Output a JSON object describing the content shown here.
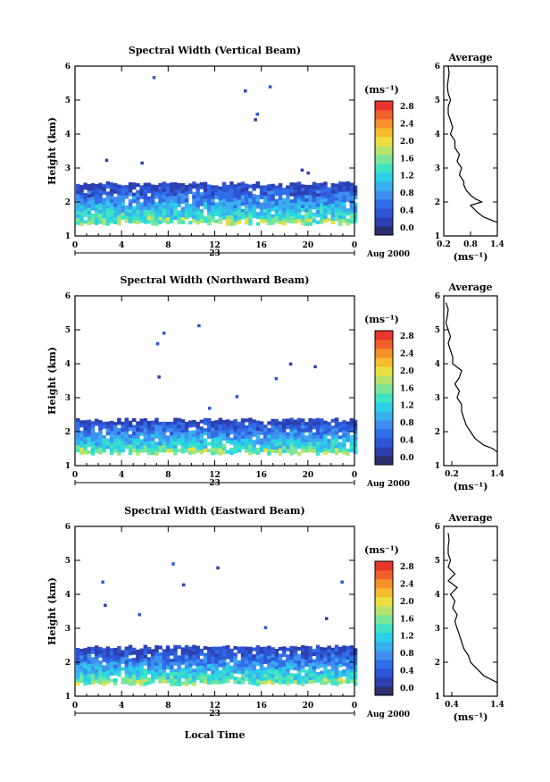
{
  "figure": {
    "date_label": "Aug 2000",
    "xaxis_title": "Local Time",
    "day_label": "23",
    "height_label": "Height (km)",
    "cbar_unit": "(ms⁻¹)",
    "avg_title": "Average",
    "avg_unit": "(ms⁻¹)"
  },
  "colors": {
    "scale": [
      "#2b2f6e",
      "#2c3fb0",
      "#2d55d6",
      "#2f6ee8",
      "#3f8ff0",
      "#38b0ee",
      "#2ad1e6",
      "#3fe3c4",
      "#7ae69a",
      "#b7e36a",
      "#ecdf3f",
      "#f7bb2e",
      "#f7912a",
      "#f0602a",
      "#e8352c"
    ]
  },
  "chart_data": [
    {
      "type": "heatmap",
      "title": "Spectral Width (Vertical Beam)",
      "xlabel": "Local Time",
      "ylabel": "Height (km)",
      "xlim": [
        0,
        24
      ],
      "ylim": [
        1,
        6
      ],
      "xticks": [
        "0",
        "4",
        "8",
        "12",
        "16",
        "20",
        "0"
      ],
      "yticks": [
        "1",
        "2",
        "3",
        "4",
        "5",
        "6"
      ],
      "colorbar": {
        "label": "(ms⁻¹)",
        "range": [
          0,
          2.8
        ],
        "ticks": [
          "0.0",
          "0.4",
          "0.8",
          "1.2",
          "1.6",
          "2.0",
          "2.4",
          "2.8"
        ]
      },
      "layer_top_km": 2.55,
      "data_bottom_km": 1.4,
      "profile": {
        "title": "Average",
        "xlabel": "(ms⁻¹)",
        "xlim": [
          0.2,
          1.4
        ],
        "xticks": [
          "0.2",
          "0.8",
          "1.4"
        ],
        "height": [
          1.4,
          1.45,
          1.55,
          1.7,
          1.9,
          2.0,
          2.1,
          2.2,
          2.35,
          2.5,
          2.6,
          2.8,
          3.0,
          3.2,
          3.4,
          3.6,
          3.8,
          4.0,
          4.2,
          4.4,
          4.6,
          4.8,
          5.0,
          5.2,
          5.4,
          5.6,
          5.8,
          6.0
        ],
        "width": [
          1.4,
          1.3,
          1.1,
          0.95,
          0.8,
          1.05,
          0.9,
          0.8,
          0.7,
          0.65,
          0.65,
          0.55,
          0.6,
          0.5,
          0.55,
          0.45,
          0.45,
          0.35,
          0.4,
          0.35,
          0.3,
          0.3,
          0.35,
          0.3,
          0.28,
          0.3,
          0.32,
          0.3
        ]
      }
    },
    {
      "type": "heatmap",
      "title": "Spectral Width (Northward Beam)",
      "xlabel": "Local Time",
      "ylabel": "Height (km)",
      "xlim": [
        0,
        24
      ],
      "ylim": [
        1,
        6
      ],
      "xticks": [
        "0",
        "4",
        "8",
        "12",
        "16",
        "20",
        "0"
      ],
      "yticks": [
        "1",
        "2",
        "3",
        "4",
        "5",
        "6"
      ],
      "colorbar": {
        "label": "(ms⁻¹)",
        "range": [
          0,
          2.8
        ],
        "ticks": [
          "0.0",
          "0.4",
          "0.8",
          "1.2",
          "1.6",
          "2.0",
          "2.4",
          "2.8"
        ]
      },
      "layer_top_km": 2.35,
      "data_bottom_km": 1.4,
      "profile": {
        "title": "Average",
        "xlabel": "(ms⁻¹)",
        "xlim": [
          0.2,
          1.4
        ],
        "xticks": [
          "0.2",
          "1.4"
        ],
        "height": [
          1.4,
          1.5,
          1.6,
          1.8,
          2.0,
          2.2,
          2.4,
          2.6,
          2.8,
          3.0,
          3.2,
          3.4,
          3.6,
          3.8,
          4.0,
          4.2,
          4.4,
          4.6,
          4.8,
          5.0,
          5.2,
          5.4,
          5.6,
          5.8
        ],
        "width": [
          1.4,
          1.3,
          1.1,
          0.9,
          0.8,
          0.7,
          0.65,
          0.6,
          0.6,
          0.5,
          0.55,
          0.45,
          0.55,
          0.6,
          0.4,
          0.4,
          0.35,
          0.3,
          0.35,
          0.3,
          0.25,
          0.28,
          0.3,
          0.25
        ]
      }
    },
    {
      "type": "heatmap",
      "title": "Spectral Width (Eastward Beam)",
      "xlabel": "Local Time",
      "ylabel": "Height (km)",
      "xlim": [
        0,
        24
      ],
      "ylim": [
        1,
        6
      ],
      "xticks": [
        "0",
        "4",
        "8",
        "12",
        "16",
        "20",
        "0"
      ],
      "yticks": [
        "1",
        "2",
        "3",
        "4",
        "5",
        "6"
      ],
      "colorbar": {
        "label": "(ms⁻¹)",
        "range": [
          0,
          2.8
        ],
        "ticks": [
          "0.0",
          "0.4",
          "0.8",
          "1.2",
          "1.6",
          "2.0",
          "2.4",
          "2.8"
        ]
      },
      "layer_top_km": 2.45,
      "data_bottom_km": 1.4,
      "profile": {
        "title": "Average",
        "xlabel": "(ms⁻¹)",
        "xlim": [
          0.2,
          1.4
        ],
        "xticks": [
          "0.4",
          "1.4"
        ],
        "height": [
          1.4,
          1.5,
          1.6,
          1.8,
          2.0,
          2.2,
          2.4,
          2.6,
          2.8,
          3.0,
          3.2,
          3.4,
          3.6,
          3.8,
          4.0,
          4.2,
          4.4,
          4.6,
          4.8,
          5.0,
          5.2,
          5.4,
          5.6,
          5.8
        ],
        "width": [
          1.4,
          1.25,
          1.1,
          0.95,
          0.8,
          0.75,
          0.65,
          0.6,
          0.55,
          0.5,
          0.45,
          0.5,
          0.4,
          0.45,
          0.35,
          0.5,
          0.3,
          0.45,
          0.3,
          0.35,
          0.3,
          0.3,
          0.32,
          0.3
        ]
      }
    }
  ]
}
